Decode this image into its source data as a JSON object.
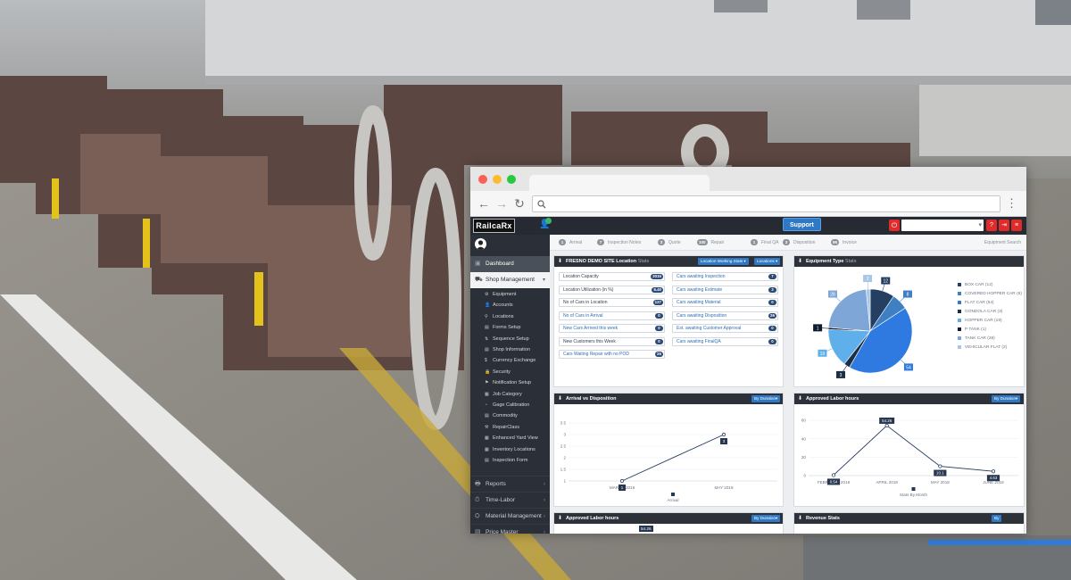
{
  "app": {
    "logo_text": "RailcaRx",
    "support_label": "Support",
    "equipment_search": "Equipment Search"
  },
  "status_steps": [
    {
      "num": "1",
      "label": "Arrival"
    },
    {
      "num": "7",
      "label": "Inspection Notes"
    },
    {
      "num": "3",
      "label": "Quote"
    },
    {
      "num": "100",
      "label": "Repair"
    },
    {
      "num": "1",
      "label": "Final QA"
    },
    {
      "num": "3",
      "label": "Disposition"
    },
    {
      "num": "96",
      "label": "Invoice"
    }
  ],
  "sidebar": {
    "dashboard": "Dashboard",
    "shop_management": "Shop Management",
    "sub_items": [
      "Equipment",
      "Accounts",
      "Locations",
      "Forms Setup",
      "Sequence Setup",
      "Shop Information",
      "Currency Exchange",
      "Security",
      "Notification Setup",
      "Job Category",
      "Gage Calibration",
      "Commodity",
      "RepairClass",
      "Enhanced Yard View",
      "Inventory Locations",
      "Inspection Form"
    ],
    "bottom_items": [
      "Reports",
      "Time-Labor",
      "Material Management",
      "Price Master"
    ]
  },
  "location_panel": {
    "title_site": "FRESNO DEMO SITE",
    "title_bold": "Location",
    "title_rest": "Stats",
    "dropdown1": "Location Working Stats",
    "dropdown2": "Locations",
    "left_rows": [
      {
        "label": "Location Capacity",
        "value": "2015"
      },
      {
        "label": "Location Utilization (in %)",
        "value": "6.40"
      },
      {
        "label": "No of Cars in Location",
        "value": "127"
      },
      {
        "label": "No of Cars in Arrival",
        "value": "0"
      },
      {
        "label": "New Cars Arrived this week",
        "value": "0"
      },
      {
        "label": "New Customers this Week",
        "value": "0"
      },
      {
        "label": "Cars Waiting Repair with no POD",
        "value": "26"
      }
    ],
    "right_rows": [
      {
        "label": "Cars awaiting Inspection",
        "value": "7"
      },
      {
        "label": "Cars awaiting Estimate",
        "value": "3"
      },
      {
        "label": "Cars awaiting Material",
        "value": "0"
      },
      {
        "label": "Cars awaiting Disposition",
        "value": "26"
      },
      {
        "label": "Est. awaiting Customer Approval",
        "value": "0"
      },
      {
        "label": "Cars awaiting FinalQA",
        "value": "0"
      }
    ]
  },
  "equipment_panel": {
    "title_bold": "Equipment Type",
    "title_rest": "Stats"
  },
  "arrival_panel": {
    "title": "Arrival vs Disposition",
    "dropdown": "By Duration"
  },
  "labor_panel": {
    "title": "Approved Labor hours",
    "dropdown": "By Duration"
  },
  "labor_panel2": {
    "title": "Approved Labor hours",
    "dropdown": "By Duration",
    "peek_value": "54.26"
  },
  "revenue_panel": {
    "title": "Revenue Stats",
    "dropdown": "By"
  },
  "chart_data": [
    {
      "type": "pie",
      "labels": [
        "BOX CAR (12)",
        "COVERED HOPPER CAR (8)",
        "FLAT CAR (54)",
        "GONDOLA CAR (3)",
        "HOPPER CAR (19)",
        "P TANK (1)",
        "TANK CAR (28)",
        "VEHICULAR FLAT (2)"
      ],
      "values": [
        12,
        8,
        54,
        3,
        19,
        1,
        28,
        2
      ],
      "colors": [
        "#253f63",
        "#3f7fc3",
        "#2f7ae0",
        "#1b2e48",
        "#5fb0ea",
        "#0e1c2f",
        "#7ea6d6",
        "#a9c6e6"
      ],
      "legend": "right"
    },
    {
      "type": "line",
      "x": [
        "MARCH 2018",
        "MAY 2018"
      ],
      "series": [
        {
          "name": "Arrival",
          "values": [
            1,
            3
          ]
        }
      ],
      "ylim": [
        1,
        3.5
      ],
      "yticks": [
        "1",
        "1.5",
        "2",
        "2.5",
        "3",
        "3.5"
      ],
      "legend": "bottom"
    },
    {
      "type": "line",
      "x": [
        "FEBRUARY 2018",
        "APRIL 2018",
        "MAY 2018",
        "JUNE 2018"
      ],
      "series": [
        {
          "name": "Stats By Month",
          "values": [
            0.54,
            54.26,
            10.1,
            4.63
          ]
        }
      ],
      "ylim": [
        0,
        60
      ],
      "yticks": [
        "0",
        "20",
        "40",
        "60"
      ],
      "legend": "bottom"
    }
  ]
}
